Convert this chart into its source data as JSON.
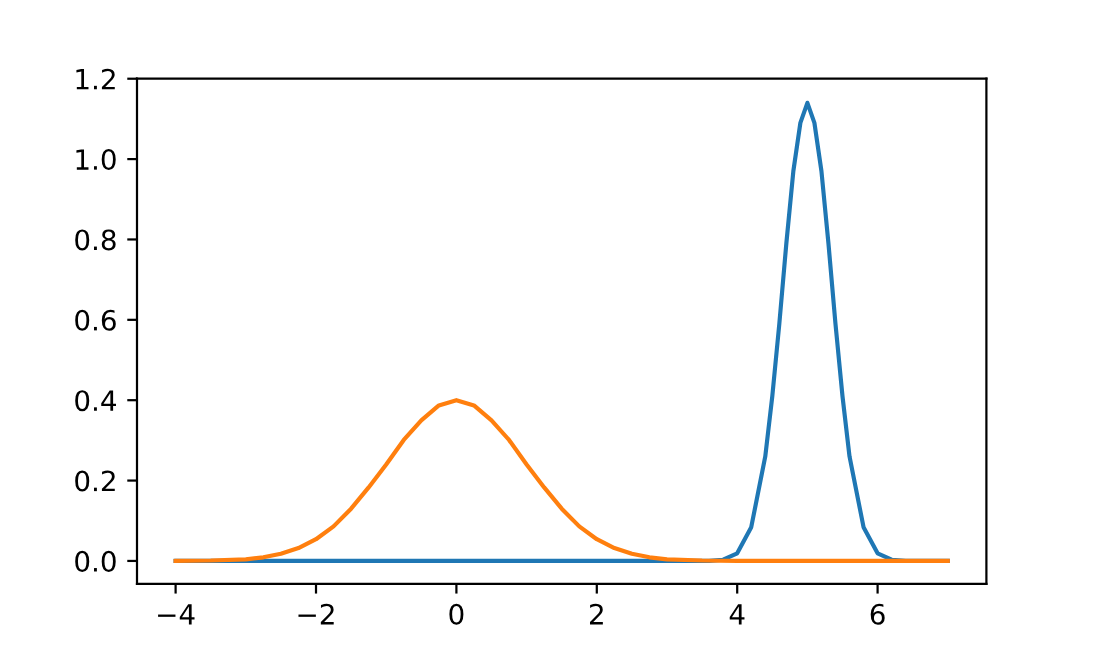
{
  "chart_data": {
    "type": "line",
    "xlim": [
      -4.55,
      7.55
    ],
    "ylim": [
      -0.057,
      1.2
    ],
    "xticks": [
      {
        "value": -4,
        "label": "−4"
      },
      {
        "value": -2,
        "label": "−2"
      },
      0,
      2,
      4,
      6
    ],
    "yticks": [
      {
        "value": 0,
        "label": "0.0"
      },
      0.2,
      0.4,
      0.6,
      0.8,
      {
        "value": 1,
        "label": "1.0"
      },
      1.2
    ],
    "grid": false,
    "legend": false,
    "series": [
      {
        "color": "#1f77b4",
        "x": [
          -4,
          3.6,
          3.8,
          4.0,
          4.2,
          4.4,
          4.5,
          4.6,
          4.7,
          4.8,
          4.9,
          5.0,
          5.1,
          5.2,
          5.3,
          5.4,
          5.5,
          5.6,
          5.8,
          6.0,
          6.2,
          6.4,
          7
        ],
        "values": [
          0,
          0,
          0.003,
          0.019,
          0.084,
          0.26,
          0.41,
          0.59,
          0.79,
          0.97,
          1.09,
          1.14,
          1.09,
          0.97,
          0.79,
          0.59,
          0.41,
          0.26,
          0.084,
          0.019,
          0.003,
          0,
          0
        ]
      },
      {
        "color": "#ff7f0e",
        "x": [
          -4,
          -3.5,
          -3,
          -2.75,
          -2.5,
          -2.25,
          -2,
          -1.75,
          -1.5,
          -1.25,
          -1,
          -0.75,
          -0.5,
          -0.25,
          0,
          0.25,
          0.5,
          0.75,
          1,
          1.25,
          1.5,
          1.75,
          2,
          2.25,
          2.5,
          2.75,
          3,
          3.5,
          4,
          7
        ],
        "values": [
          0,
          0.001,
          0.004,
          0.009,
          0.018,
          0.032,
          0.054,
          0.086,
          0.13,
          0.183,
          0.24,
          0.301,
          0.35,
          0.387,
          0.4,
          0.387,
          0.35,
          0.301,
          0.24,
          0.183,
          0.13,
          0.086,
          0.054,
          0.032,
          0.018,
          0.009,
          0.004,
          0.001,
          0,
          0
        ]
      }
    ]
  }
}
